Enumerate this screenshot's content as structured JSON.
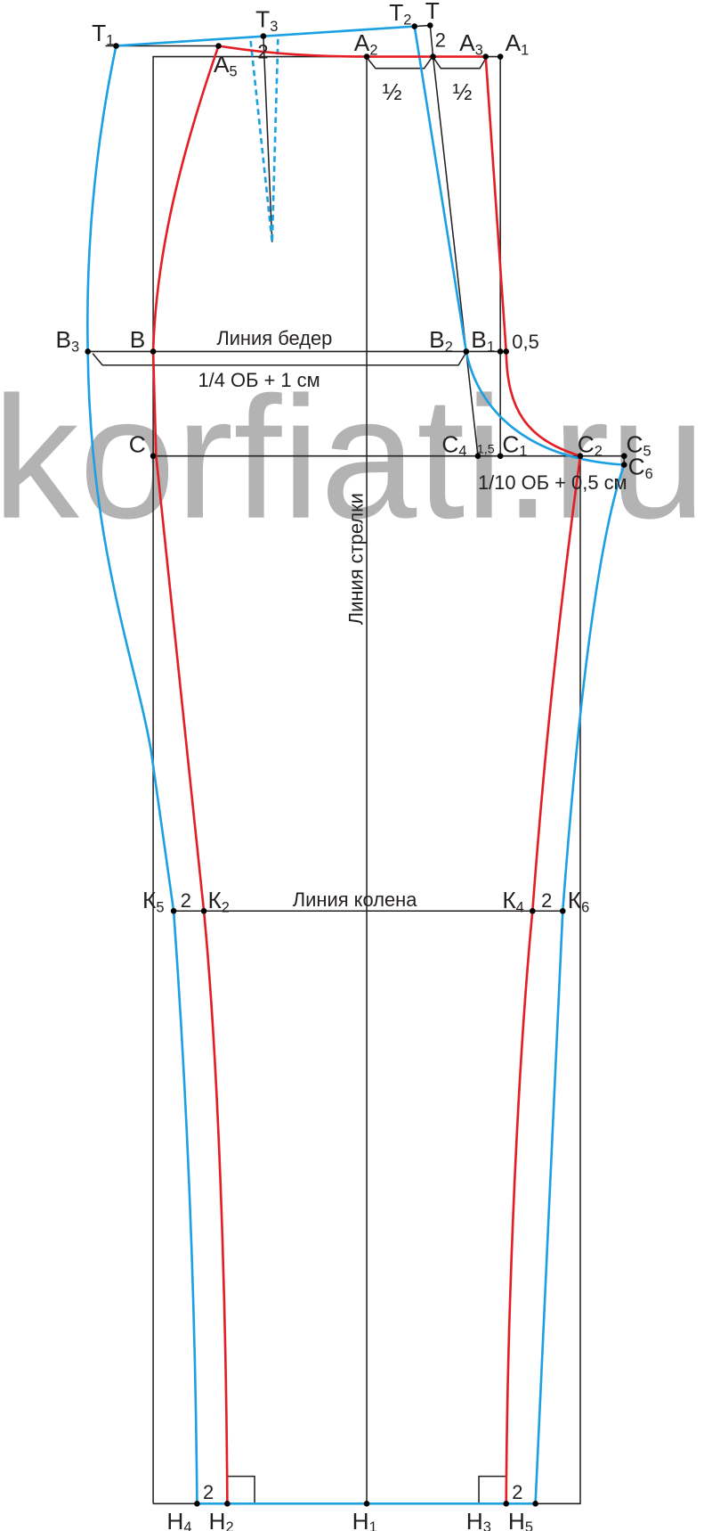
{
  "watermark": "korfiati.ru",
  "colors": {
    "front": "#e31e24",
    "back": "#1ba1e2",
    "construction": "#231f20"
  },
  "labels": {
    "T1": {
      "t": "Т",
      "s": "1"
    },
    "T3": {
      "t": "Т",
      "s": "3"
    },
    "T2": {
      "t": "Т",
      "s": "2"
    },
    "T": {
      "t": "Т"
    },
    "A2": {
      "t": "А",
      "s": "2"
    },
    "A3": {
      "t": "А",
      "s": "3"
    },
    "A1": {
      "t": "А",
      "s": "1"
    },
    "A5": {
      "t": "А",
      "s": "5"
    },
    "B3": {
      "t": "В",
      "s": "3"
    },
    "B": {
      "t": "В"
    },
    "B2": {
      "t": "В",
      "s": "2"
    },
    "B1": {
      "t": "В",
      "s": "1"
    },
    "C": {
      "t": "С"
    },
    "C4": {
      "t": "С",
      "s": "4"
    },
    "C1": {
      "t": "С",
      "s": "1"
    },
    "C2": {
      "t": "С",
      "s": "2"
    },
    "C5": {
      "t": "С",
      "s": "5"
    },
    "C6": {
      "t": "С",
      "s": "6"
    },
    "K5": {
      "t": "К",
      "s": "5"
    },
    "K2": {
      "t": "К",
      "s": "2"
    },
    "K4": {
      "t": "К",
      "s": "4"
    },
    "K6": {
      "t": "К",
      "s": "6"
    },
    "H4": {
      "t": "Н",
      "s": "4"
    },
    "H2": {
      "t": "Н",
      "s": "2"
    },
    "H1": {
      "t": "Н",
      "s": "1"
    },
    "H3": {
      "t": "Н",
      "s": "3"
    },
    "H5": {
      "t": "Н",
      "s": "5"
    }
  },
  "annotations": {
    "hip_line": "Линия  бедер",
    "hip_formula": "1/4 ОБ + 1 см",
    "crotch_formula": "1/10 ОБ + 0,5 см",
    "crease_line": "Линия стрелки",
    "knee_line": "Линия колена",
    "half": "½",
    "two": "2",
    "half_cm": "0,5",
    "one_and_half": "1,5"
  }
}
